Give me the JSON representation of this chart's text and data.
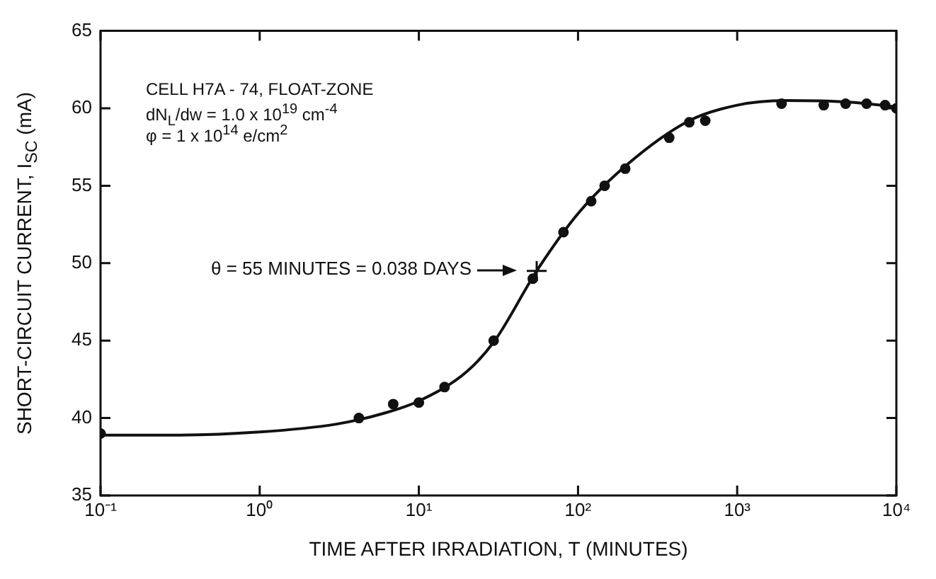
{
  "chart_data": {
    "type": "scatter",
    "xlabel": "TIME AFTER IRRADIATION, T (MINUTES)",
    "ylabel": "SHORT-CIRCUIT CURRENT, I$_{SC}$ (mA)",
    "log": "x",
    "xlim": [
      0.1,
      10000
    ],
    "ylim": [
      35,
      65
    ],
    "xticks": [
      {
        "value": 0.1,
        "label": "10⁻¹"
      },
      {
        "value": 1,
        "label": "10⁰"
      },
      {
        "value": 10,
        "label": "10¹"
      },
      {
        "value": 100,
        "label": "10²"
      },
      {
        "value": 1000,
        "label": "10³"
      },
      {
        "value": 10000,
        "label": "10⁴"
      }
    ],
    "yticks": [
      35,
      40,
      45,
      50,
      55,
      60,
      65
    ],
    "grid": false,
    "legend": false,
    "series": [
      {
        "type": "scatter",
        "color": "#111111",
        "marker": "circle",
        "x": [
          0.1,
          4.2,
          6.9,
          10,
          14.5,
          29.5,
          52,
          81,
          121,
          147,
          198,
          374,
          500,
          630,
          1900,
          3500,
          4800,
          6500,
          8500,
          10000
        ],
        "values": [
          39.0,
          40.0,
          40.9,
          41.0,
          42.0,
          45.0,
          49.0,
          52.0,
          54.0,
          55.0,
          56.1,
          58.1,
          59.1,
          59.2,
          60.3,
          60.2,
          60.3,
          60.3,
          60.2,
          60.0
        ]
      },
      {
        "type": "line",
        "color": "#111111",
        "marker": "none",
        "line_style": "solid",
        "x": [
          0.1,
          0.3,
          1,
          3,
          6,
          10,
          20,
          30,
          55,
          100,
          200,
          500,
          1000,
          2000,
          5000,
          10000
        ],
        "values": [
          38.9,
          38.9,
          39.1,
          39.6,
          40.3,
          41.1,
          43.0,
          45.0,
          49.5,
          53.2,
          56.3,
          59.2,
          60.2,
          60.5,
          60.4,
          60.1
        ]
      },
      {
        "type": "scatter",
        "color": "#111111",
        "marker": "cross",
        "x": [
          55
        ],
        "values": [
          49.5
        ]
      }
    ],
    "annotations": [
      "CELL H7A - 74, FLOAT-ZONE",
      "dN$_{L}$/dw = 1.0 x 10$^{19}$ cm$^{-4}$",
      "φ = 1 x 10$^{14}$ e/cm$^{2}$",
      "θ = 55 MINUTES = 0.038 DAYS"
    ]
  }
}
